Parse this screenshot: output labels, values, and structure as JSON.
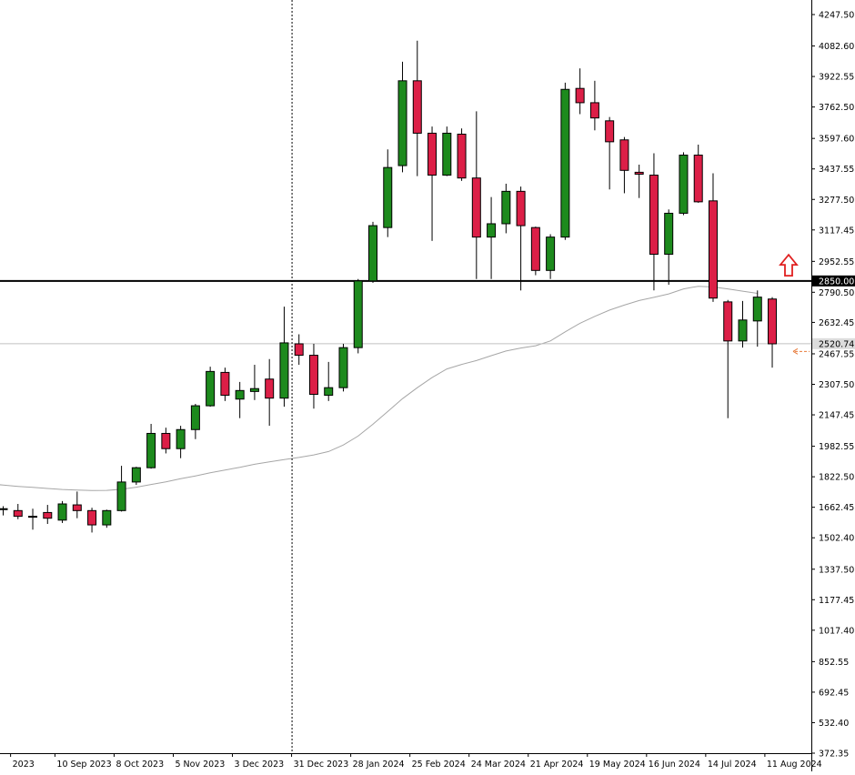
{
  "chart_data": {
    "type": "candlestick",
    "symbol_timeframe": "",
    "y_axis": {
      "min": 372.35,
      "max": 4247.5,
      "tick_labels": [
        "4247.50",
        "4082.60",
        "3922.55",
        "3762.50",
        "3597.60",
        "3437.55",
        "3277.50",
        "3117.45",
        "2952.55",
        "2790.50",
        "2632.45",
        "2467.55",
        "2307.50",
        "2147.45",
        "1982.55",
        "1822.50",
        "1662.45",
        "1502.40",
        "1337.50",
        "1177.45",
        "1017.40",
        "852.55",
        "692.45",
        "532.40",
        "372.35"
      ]
    },
    "x_axis": {
      "tick_labels": [
        "2023",
        "10 Sep 2023",
        "8 Oct 2023",
        "5 Nov 2023",
        "3 Dec 2023",
        "31 Dec 2023",
        "28 Jan 2024",
        "25 Feb 2024",
        "24 Mar 2024",
        "21 Apr 2024",
        "19 May 2024",
        "16 Jun 2024",
        "14 Jul 2024",
        "11 Aug 2024"
      ],
      "tick_candle_index": [
        0.5,
        3.5,
        7.5,
        11.5,
        15.5,
        19.5,
        23.5,
        27.5,
        31.5,
        35.5,
        39.5,
        43.5,
        47.5,
        51.5
      ]
    },
    "candles": [
      {
        "o": 1650,
        "h": 1668,
        "l": 1620,
        "c": 1655
      },
      {
        "o": 1645,
        "h": 1680,
        "l": 1600,
        "c": 1615
      },
      {
        "o": 1615,
        "h": 1655,
        "l": 1545,
        "c": 1615
      },
      {
        "o": 1635,
        "h": 1675,
        "l": 1575,
        "c": 1605
      },
      {
        "o": 1595,
        "h": 1695,
        "l": 1580,
        "c": 1680
      },
      {
        "o": 1675,
        "h": 1745,
        "l": 1605,
        "c": 1645
      },
      {
        "o": 1645,
        "h": 1660,
        "l": 1530,
        "c": 1570
      },
      {
        "o": 1570,
        "h": 1650,
        "l": 1555,
        "c": 1645
      },
      {
        "o": 1645,
        "h": 1880,
        "l": 1640,
        "c": 1795
      },
      {
        "o": 1795,
        "h": 1875,
        "l": 1780,
        "c": 1870
      },
      {
        "o": 1870,
        "h": 2100,
        "l": 1865,
        "c": 2050
      },
      {
        "o": 2050,
        "h": 2080,
        "l": 1945,
        "c": 1970
      },
      {
        "o": 1970,
        "h": 2090,
        "l": 1920,
        "c": 2070
      },
      {
        "o": 2070,
        "h": 2205,
        "l": 2020,
        "c": 2195
      },
      {
        "o": 2195,
        "h": 2400,
        "l": 2190,
        "c": 2375
      },
      {
        "o": 2370,
        "h": 2395,
        "l": 2220,
        "c": 2250
      },
      {
        "o": 2230,
        "h": 2320,
        "l": 2130,
        "c": 2275
      },
      {
        "o": 2270,
        "h": 2410,
        "l": 2225,
        "c": 2285
      },
      {
        "o": 2335,
        "h": 2440,
        "l": 2090,
        "c": 2235
      },
      {
        "o": 2235,
        "h": 2715,
        "l": 2190,
        "c": 2525
      },
      {
        "o": 2520,
        "h": 2570,
        "l": 2410,
        "c": 2460
      },
      {
        "o": 2460,
        "h": 2520,
        "l": 2180,
        "c": 2255
      },
      {
        "o": 2250,
        "h": 2425,
        "l": 2220,
        "c": 2290
      },
      {
        "o": 2290,
        "h": 2520,
        "l": 2270,
        "c": 2500
      },
      {
        "o": 2500,
        "h": 2860,
        "l": 2470,
        "c": 2850
      },
      {
        "o": 2850,
        "h": 3160,
        "l": 2840,
        "c": 3140
      },
      {
        "o": 3130,
        "h": 3540,
        "l": 3080,
        "c": 3445
      },
      {
        "o": 3455,
        "h": 4000,
        "l": 3420,
        "c": 3900
      },
      {
        "o": 3900,
        "h": 4110,
        "l": 3400,
        "c": 3625
      },
      {
        "o": 3625,
        "h": 3660,
        "l": 3060,
        "c": 3405
      },
      {
        "o": 3405,
        "h": 3660,
        "l": 3400,
        "c": 3625
      },
      {
        "o": 3620,
        "h": 3650,
        "l": 3375,
        "c": 3390
      },
      {
        "o": 3390,
        "h": 3740,
        "l": 2860,
        "c": 3080
      },
      {
        "o": 3080,
        "h": 3290,
        "l": 2860,
        "c": 3150
      },
      {
        "o": 3150,
        "h": 3360,
        "l": 3100,
        "c": 3320
      },
      {
        "o": 3320,
        "h": 3345,
        "l": 2800,
        "c": 3140
      },
      {
        "o": 3130,
        "h": 3135,
        "l": 2880,
        "c": 2905
      },
      {
        "o": 2905,
        "h": 3095,
        "l": 2860,
        "c": 3080
      },
      {
        "o": 3080,
        "h": 3890,
        "l": 3065,
        "c": 3855
      },
      {
        "o": 3860,
        "h": 3965,
        "l": 3725,
        "c": 3785
      },
      {
        "o": 3785,
        "h": 3900,
        "l": 3640,
        "c": 3705
      },
      {
        "o": 3690,
        "h": 3710,
        "l": 3330,
        "c": 3580
      },
      {
        "o": 3590,
        "h": 3605,
        "l": 3310,
        "c": 3430
      },
      {
        "o": 3420,
        "h": 3460,
        "l": 3285,
        "c": 3410
      },
      {
        "o": 3405,
        "h": 3520,
        "l": 2800,
        "c": 2990
      },
      {
        "o": 2990,
        "h": 3225,
        "l": 2830,
        "c": 3205
      },
      {
        "o": 3205,
        "h": 3525,
        "l": 3195,
        "c": 3510
      },
      {
        "o": 3510,
        "h": 3565,
        "l": 3260,
        "c": 3265
      },
      {
        "o": 3270,
        "h": 3415,
        "l": 2740,
        "c": 2760
      },
      {
        "o": 2740,
        "h": 2750,
        "l": 2130,
        "c": 2535
      },
      {
        "o": 2535,
        "h": 2745,
        "l": 2500,
        "c": 2645
      },
      {
        "o": 2640,
        "h": 2800,
        "l": 2505,
        "c": 2765
      },
      {
        "o": 2755,
        "h": 2765,
        "l": 2395,
        "c": 2520
      }
    ],
    "moving_average": [
      1787,
      1779,
      1772,
      1767,
      1761,
      1756,
      1753,
      1750,
      1751,
      1757,
      1768,
      1782,
      1796,
      1812,
      1827,
      1843,
      1858,
      1872,
      1888,
      1901,
      1913,
      1924,
      1937,
      1955,
      1989,
      2036,
      2098,
      2165,
      2232,
      2290,
      2343,
      2388,
      2412,
      2432,
      2458,
      2482,
      2498,
      2510,
      2535,
      2583,
      2628,
      2664,
      2697,
      2723,
      2747,
      2764,
      2782,
      2808,
      2822,
      2818,
      2808,
      2796,
      2785
    ],
    "horizontal_lines": [
      {
        "value": 2850.0,
        "label": "2850.00",
        "color": "#000000",
        "style": "thick"
      },
      {
        "value": 2520.74,
        "label": "2520.74",
        "color": "#c0c0c0",
        "style": "thin"
      }
    ],
    "vertical_marker_candle_index": 19.5,
    "up_arrow_value": 2925,
    "current_price_arrow_value": 2480,
    "grid": false
  },
  "colors": {
    "bull": "#1d8a1d",
    "bear": "#dc1f47",
    "wick": "#000000",
    "ma_line": "#a6a6a6",
    "arrow_up": "#e02020",
    "arrow_price": "#e87a3a"
  }
}
